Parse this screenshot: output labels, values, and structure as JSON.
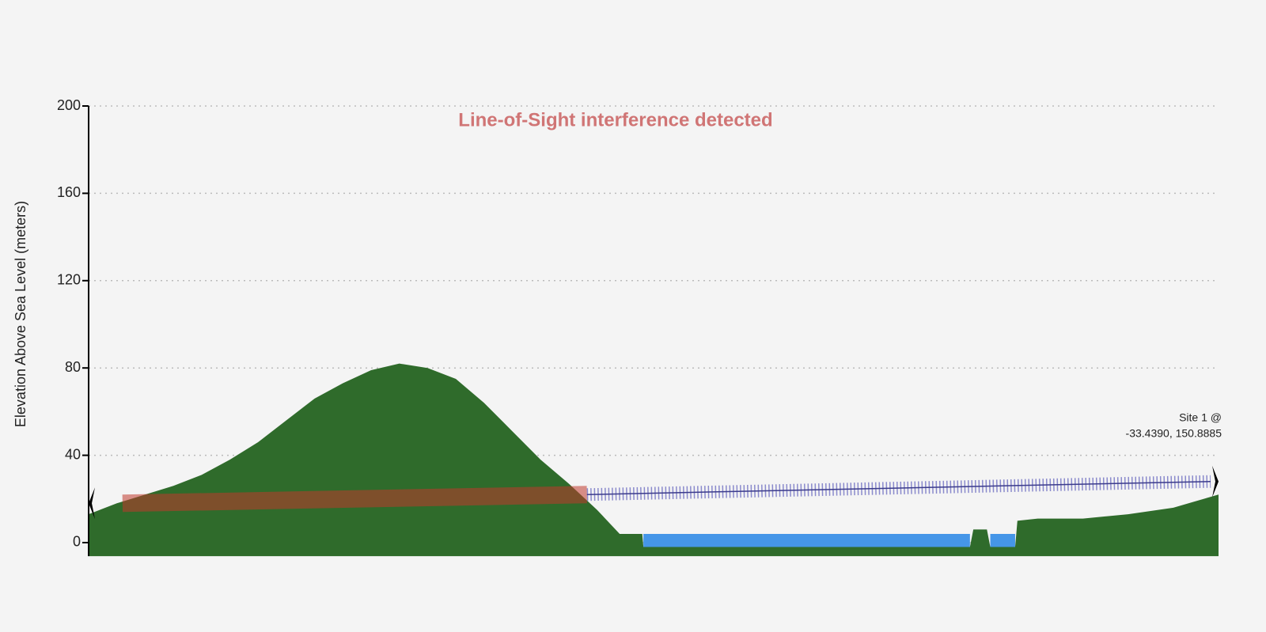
{
  "chart_data": {
    "type": "area",
    "annotation": "Line-of-Sight interference detected",
    "annotation_color": "#d07575",
    "ylabel": "Elevation Above Sea Level (meters)",
    "ylim": [
      -6.2,
      200
    ],
    "yticks": [
      0,
      40,
      80,
      120,
      160,
      200
    ],
    "xlim": [
      0,
      100
    ],
    "grid": true,
    "x": [
      0,
      2.5,
      5,
      7.5,
      10,
      12.5,
      15,
      17.5,
      20,
      22.5,
      25,
      27.5,
      30,
      32.5,
      35,
      37.5,
      40,
      42.5,
      45,
      47,
      49,
      49.1,
      78,
      78.3,
      79.5,
      79.8,
      82,
      82.2,
      84,
      88,
      92,
      96,
      100
    ],
    "series": [
      {
        "color": "#2f6b2b",
        "values": [
          13,
          18,
          22,
          26,
          31,
          38,
          46,
          56,
          66,
          73,
          79,
          82,
          80,
          75,
          64,
          51,
          38,
          27,
          15,
          4,
          4,
          -2,
          -2,
          6,
          6,
          -2,
          -2,
          10,
          11,
          11,
          13,
          16,
          22
        ]
      },
      {
        "color": "#4596e8",
        "values": [
          null,
          null,
          null,
          null,
          null,
          null,
          null,
          null,
          null,
          null,
          null,
          null,
          null,
          null,
          null,
          null,
          null,
          null,
          null,
          null,
          null,
          4,
          4,
          null,
          null,
          4,
          4,
          null,
          null,
          null,
          null,
          null,
          null
        ]
      }
    ],
    "obstructed_path": {
      "color": "#c0392b",
      "x": [
        3,
        44.1
      ],
      "values": [
        18,
        22
      ]
    },
    "clear_path": {
      "color": "#3b3b8c",
      "x": [
        44.1,
        99.3
      ],
      "values": [
        22,
        28
      ]
    },
    "sites": [
      {
        "x": 0,
        "value": 18
      },
      {
        "x": 100,
        "value": 28,
        "label": [
          "Site 1 @",
          "-33.4390, 150.8885"
        ]
      }
    ]
  }
}
